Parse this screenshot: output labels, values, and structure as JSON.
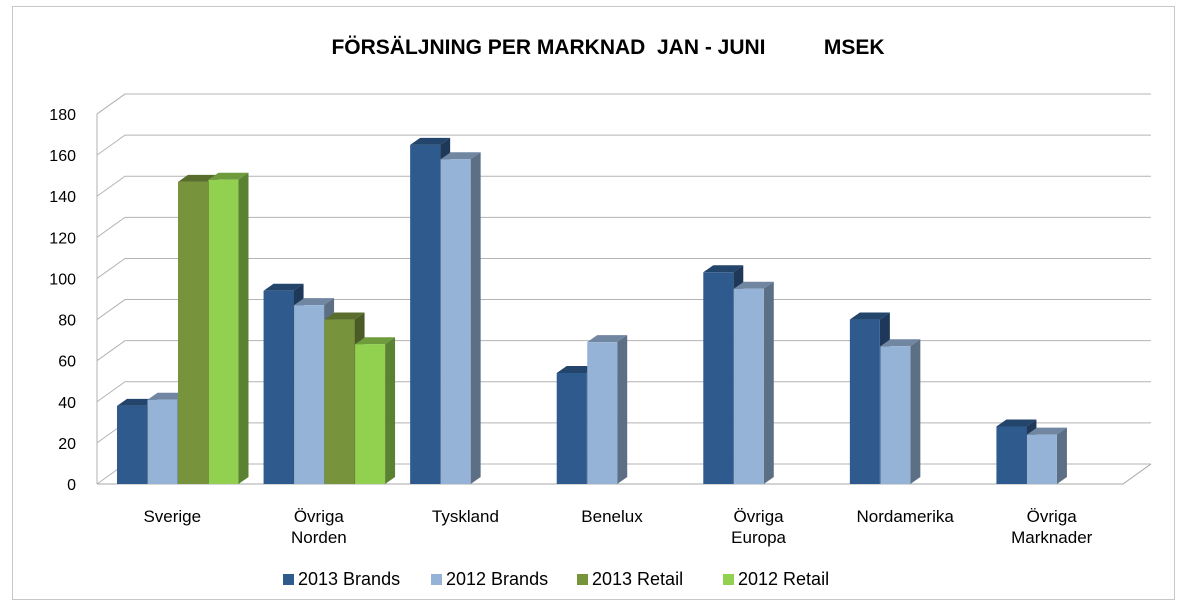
{
  "chart_data": {
    "type": "bar",
    "title": "FÖRSÄLJNING PER MARKNAD  JAN - JUNI          MSEK",
    "categories": [
      [
        "Sverige"
      ],
      [
        "Övriga",
        "Norden"
      ],
      [
        "Tyskland"
      ],
      [
        "Benelux"
      ],
      [
        "Övriga",
        "Europa"
      ],
      [
        "Nordamerika"
      ],
      [
        "Övriga",
        "Marknader"
      ]
    ],
    "series": [
      {
        "name": "2013 Brands",
        "color": "#2e5a8e",
        "values": [
          38,
          94,
          165,
          54,
          103,
          80,
          28
        ]
      },
      {
        "name": "2012 Brands",
        "color": "#95b3d7",
        "values": [
          41,
          87,
          158,
          69,
          95,
          67,
          24
        ]
      },
      {
        "name": "2013 Retail",
        "color": "#77933c",
        "values": [
          147,
          80,
          null,
          null,
          null,
          null,
          null
        ]
      },
      {
        "name": "2012 Retail",
        "color": "#92d050",
        "values": [
          148,
          68,
          null,
          null,
          null,
          null,
          null
        ]
      }
    ],
    "y_ticks": [
      "0",
      "20",
      "40",
      "60",
      "80",
      "100",
      "120",
      "140",
      "160",
      "180"
    ],
    "ylim": [
      0,
      180
    ],
    "grid": true,
    "legend_position": "bottom"
  }
}
